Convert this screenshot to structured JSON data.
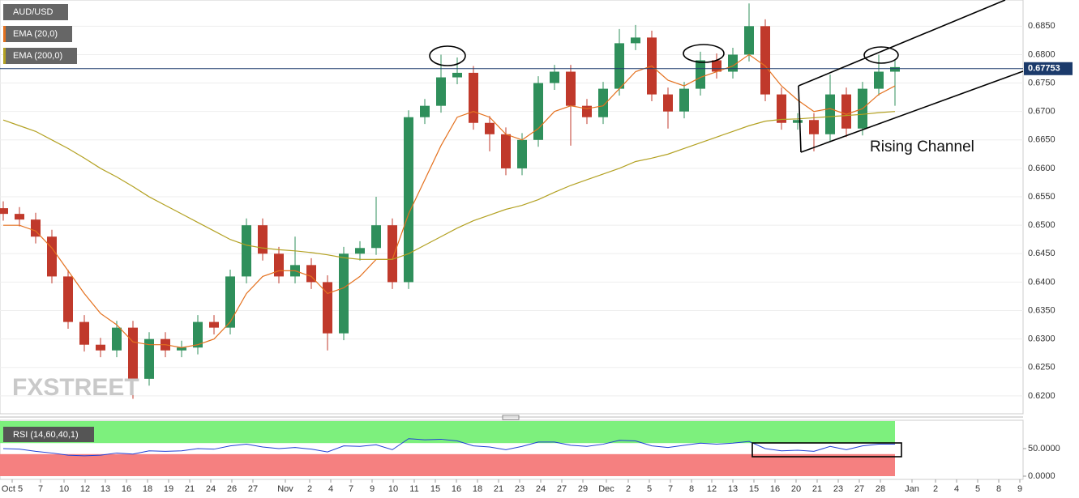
{
  "chart_data": [
    {
      "type": "candlestick",
      "title": "AUD/USD",
      "open": [
        0.653,
        0.652,
        0.651,
        0.648,
        0.641,
        0.633,
        0.629,
        0.628,
        0.632,
        0.623,
        0.63,
        0.628,
        0.6285,
        0.633,
        0.632,
        0.641,
        0.65,
        0.645,
        0.641,
        0.643,
        0.64,
        0.631,
        0.645,
        0.646,
        0.65,
        0.64,
        0.669,
        0.671,
        0.676,
        0.6768,
        0.668,
        0.666,
        0.66,
        0.665,
        0.675,
        0.677,
        0.671,
        0.669,
        0.674,
        0.682,
        0.683,
        0.673,
        0.67,
        0.674,
        0.679,
        0.677,
        0.68,
        0.685,
        0.673,
        0.668,
        0.6685,
        0.666,
        0.673,
        0.667,
        0.674,
        0.677
      ],
      "high": [
        0.6542,
        0.6532,
        0.6522,
        0.6492,
        0.6422,
        0.6342,
        0.6302,
        0.6332,
        0.6332,
        0.6312,
        0.6312,
        0.6297,
        0.6342,
        0.6342,
        0.6422,
        0.6512,
        0.6512,
        0.6462,
        0.648,
        0.6442,
        0.6412,
        0.6462,
        0.6472,
        0.655,
        0.6512,
        0.6702,
        0.6722,
        0.68,
        0.6795,
        0.678,
        0.6692,
        0.6672,
        0.6662,
        0.6762,
        0.6782,
        0.6782,
        0.6722,
        0.6752,
        0.6845,
        0.6852,
        0.6842,
        0.6742,
        0.6752,
        0.6805,
        0.6802,
        0.6812,
        0.689,
        0.6862,
        0.6742,
        0.6697,
        0.6697,
        0.6765,
        0.6742,
        0.6752,
        0.68,
        0.679
      ],
      "low": [
        0.6508,
        0.6498,
        0.6468,
        0.6398,
        0.6318,
        0.6278,
        0.6268,
        0.6268,
        0.6195,
        0.6218,
        0.6268,
        0.6268,
        0.6273,
        0.6308,
        0.6308,
        0.6398,
        0.6438,
        0.6398,
        0.6398,
        0.6388,
        0.628,
        0.6298,
        0.6438,
        0.6448,
        0.6388,
        0.6388,
        0.6678,
        0.6698,
        0.6748,
        0.6668,
        0.663,
        0.6588,
        0.6588,
        0.6638,
        0.6738,
        0.664,
        0.6678,
        0.6678,
        0.6728,
        0.6808,
        0.6718,
        0.667,
        0.6688,
        0.6728,
        0.6758,
        0.6758,
        0.6788,
        0.6718,
        0.6668,
        0.6668,
        0.663,
        0.6648,
        0.6655,
        0.6658,
        0.6728,
        0.671
      ],
      "close": [
        0.652,
        0.651,
        0.648,
        0.641,
        0.633,
        0.629,
        0.628,
        0.632,
        0.623,
        0.63,
        0.628,
        0.6285,
        0.633,
        0.632,
        0.641,
        0.65,
        0.645,
        0.641,
        0.643,
        0.64,
        0.631,
        0.645,
        0.646,
        0.65,
        0.64,
        0.669,
        0.671,
        0.676,
        0.6768,
        0.668,
        0.666,
        0.66,
        0.665,
        0.675,
        0.677,
        0.671,
        0.669,
        0.674,
        0.682,
        0.683,
        0.673,
        0.67,
        0.674,
        0.679,
        0.677,
        0.68,
        0.685,
        0.673,
        0.668,
        0.6685,
        0.666,
        0.673,
        0.667,
        0.674,
        0.677,
        0.6778
      ],
      "up_color": "#2f8f5b",
      "down_color": "#c0392b",
      "series": [
        {
          "name": "EMA (20,0)",
          "color": "#e4711f",
          "values": [
            0.65,
            0.65,
            0.649,
            0.646,
            0.642,
            0.638,
            0.6345,
            0.6325,
            0.6295,
            0.629,
            0.629,
            0.6285,
            0.629,
            0.63,
            0.633,
            0.638,
            0.641,
            0.642,
            0.642,
            0.641,
            0.638,
            0.639,
            0.641,
            0.644,
            0.644,
            0.652,
            0.658,
            0.664,
            0.669,
            0.67,
            0.669,
            0.666,
            0.665,
            0.667,
            0.67,
            0.671,
            0.6705,
            0.671,
            0.674,
            0.677,
            0.678,
            0.6755,
            0.6745,
            0.676,
            0.677,
            0.678,
            0.68,
            0.678,
            0.6745,
            0.672,
            0.67,
            0.6705,
            0.6695,
            0.6705,
            0.673,
            0.6745
          ]
        },
        {
          "name": "EMA (200,0)",
          "color": "#b3a122",
          "values": [
            0.6685,
            0.6675,
            0.6665,
            0.665,
            0.6635,
            0.6618,
            0.66,
            0.6585,
            0.6568,
            0.655,
            0.6535,
            0.652,
            0.6505,
            0.649,
            0.6475,
            0.6465,
            0.646,
            0.6457,
            0.6455,
            0.6452,
            0.6448,
            0.6443,
            0.644,
            0.644,
            0.644,
            0.645,
            0.6465,
            0.648,
            0.6495,
            0.6508,
            0.6518,
            0.6528,
            0.6535,
            0.6545,
            0.6558,
            0.657,
            0.658,
            0.659,
            0.66,
            0.6612,
            0.6618,
            0.6625,
            0.6635,
            0.6645,
            0.6655,
            0.6665,
            0.6675,
            0.6683,
            0.6686,
            0.6687,
            0.6689,
            0.6691,
            0.6693,
            0.6695,
            0.6698,
            0.67
          ]
        }
      ],
      "xlim": [
        -0.2,
        62.9
      ],
      "xticks": [
        {
          "value": 0.55,
          "label": "Oct 5"
        },
        {
          "value": 2.3,
          "label": "7"
        },
        {
          "value": 3.75,
          "label": "10"
        },
        {
          "value": 5.05,
          "label": "12"
        },
        {
          "value": 6.3,
          "label": "13"
        },
        {
          "value": 7.6,
          "label": "16"
        },
        {
          "value": 8.9,
          "label": "18"
        },
        {
          "value": 10.2,
          "label": "19"
        },
        {
          "value": 11.5,
          "label": "21"
        },
        {
          "value": 12.8,
          "label": "24"
        },
        {
          "value": 14.1,
          "label": "26"
        },
        {
          "value": 15.4,
          "label": "27"
        },
        {
          "value": 17.4,
          "label": "Nov"
        },
        {
          "value": 18.9,
          "label": "2"
        },
        {
          "value": 20.2,
          "label": "4"
        },
        {
          "value": 21.45,
          "label": "7"
        },
        {
          "value": 22.75,
          "label": "9"
        },
        {
          "value": 24.05,
          "label": "10"
        },
        {
          "value": 25.35,
          "label": "11"
        },
        {
          "value": 26.65,
          "label": "15"
        },
        {
          "value": 27.95,
          "label": "16"
        },
        {
          "value": 29.25,
          "label": "18"
        },
        {
          "value": 30.55,
          "label": "21"
        },
        {
          "value": 31.85,
          "label": "23"
        },
        {
          "value": 33.15,
          "label": "24"
        },
        {
          "value": 34.45,
          "label": "27"
        },
        {
          "value": 35.75,
          "label": "29"
        },
        {
          "value": 37.2,
          "label": "Dec"
        },
        {
          "value": 38.55,
          "label": "2"
        },
        {
          "value": 39.85,
          "label": "5"
        },
        {
          "value": 41.15,
          "label": "7"
        },
        {
          "value": 42.45,
          "label": "8"
        },
        {
          "value": 43.7,
          "label": "12"
        },
        {
          "value": 45.0,
          "label": "13"
        },
        {
          "value": 46.3,
          "label": "15"
        },
        {
          "value": 47.6,
          "label": "16"
        },
        {
          "value": 48.9,
          "label": "20"
        },
        {
          "value": 50.2,
          "label": "21"
        },
        {
          "value": 51.5,
          "label": "23"
        },
        {
          "value": 52.8,
          "label": "27"
        },
        {
          "value": 54.1,
          "label": "28"
        },
        {
          "value": 56.05,
          "label": "Jan"
        },
        {
          "value": 57.5,
          "label": "2"
        },
        {
          "value": 58.8,
          "label": "4"
        },
        {
          "value": 60.1,
          "label": "5"
        },
        {
          "value": 61.4,
          "label": "8"
        },
        {
          "value": 62.7,
          "label": "9"
        }
      ],
      "ylim": [
        0.617,
        0.6896
      ],
      "yticks": [
        {
          "value": 0.62,
          "label": "0.6200"
        },
        {
          "value": 0.625,
          "label": "0.6250"
        },
        {
          "value": 0.63,
          "label": "0.6300"
        },
        {
          "value": 0.635,
          "label": "0.6350"
        },
        {
          "value": 0.64,
          "label": "0.6400"
        },
        {
          "value": 0.645,
          "label": "0.6450"
        },
        {
          "value": 0.65,
          "label": "0.6500"
        },
        {
          "value": 0.655,
          "label": "0.6550"
        },
        {
          "value": 0.66,
          "label": "0.6600"
        },
        {
          "value": 0.665,
          "label": "0.6650"
        },
        {
          "value": 0.67,
          "label": "0.6700"
        },
        {
          "value": 0.675,
          "label": "0.6750"
        },
        {
          "value": 0.68,
          "label": "0.6800"
        },
        {
          "value": 0.685,
          "label": "0.6850"
        }
      ],
      "last_price": 0.67753,
      "annotation": "Rising Channel",
      "watermark": "FXSTREET",
      "grid": true
    },
    {
      "type": "line",
      "series": [
        {
          "name": "RSI (14,60,40,1)",
          "color": "#1f3fd6",
          "values": [
            50,
            49,
            45,
            42,
            38,
            37,
            38,
            42,
            40,
            46,
            45,
            46,
            50,
            49,
            55,
            58,
            53,
            50,
            52,
            49,
            44,
            55,
            54,
            57,
            48,
            68,
            66,
            67,
            64,
            55,
            53,
            48,
            54,
            62,
            62,
            56,
            54,
            58,
            65,
            64,
            55,
            52,
            56,
            60,
            58,
            60,
            63,
            50,
            46,
            47,
            45,
            54,
            48,
            55,
            58,
            58
          ]
        }
      ],
      "bands": [
        {
          "from": 60,
          "to": 100,
          "color": "#7df07d"
        },
        {
          "from": 0,
          "to": 40,
          "color": "#f58080"
        }
      ],
      "ylim": [
        0,
        100
      ],
      "yticks": [
        {
          "value": 50,
          "label": "50.0000"
        },
        {
          "value": 0,
          "label": "0.0000"
        }
      ]
    }
  ]
}
